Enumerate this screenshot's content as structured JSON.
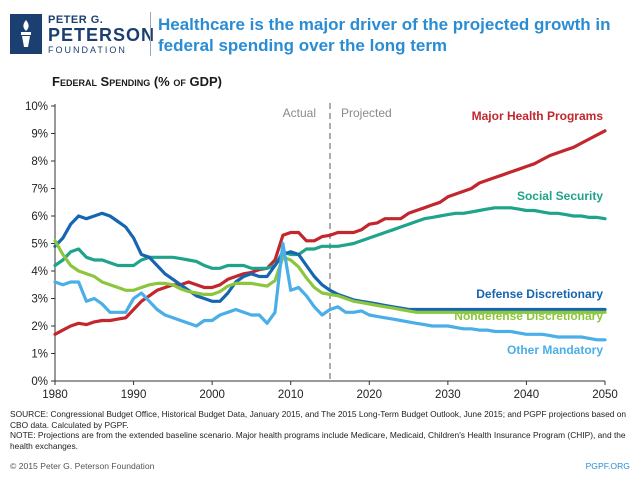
{
  "logo": {
    "line1": "PETER G.",
    "line2": "PETERSON",
    "line3": "FOUNDATION",
    "icon": "torch-logo-icon"
  },
  "title": "Healthcare is the major driver of the projected growth in federal spending over the long term",
  "subtitle": "Federal Spending (% of GDP)",
  "source_text": "SOURCE: Congressional Budget Office, Historical Budget Data, January 2015, and The 2015 Long-Term Budget Outlook, June 2015; and PGPF projections based on CBO data. Calculated by PGPF.",
  "note_text": "NOTE: Projections are from the extended baseline scenario. Major health programs include Medicare, Medicaid, Children's Health Insurance Program (CHIP), and the health exchanges.",
  "copyright": "© 2015 Peter G. Peterson Foundation",
  "site": "PGPF.ORG",
  "chart_data": {
    "type": "line",
    "x": [
      1980,
      1981,
      1982,
      1983,
      1984,
      1985,
      1986,
      1987,
      1988,
      1989,
      1990,
      1991,
      1992,
      1993,
      1994,
      1995,
      1996,
      1997,
      1998,
      1999,
      2000,
      2001,
      2002,
      2003,
      2004,
      2005,
      2006,
      2007,
      2008,
      2009,
      2010,
      2011,
      2012,
      2013,
      2014,
      2015,
      2016,
      2017,
      2018,
      2019,
      2020,
      2021,
      2022,
      2023,
      2024,
      2025,
      2026,
      2027,
      2028,
      2029,
      2030,
      2031,
      2032,
      2033,
      2034,
      2035,
      2036,
      2037,
      2038,
      2039,
      2040,
      2041,
      2042,
      2043,
      2044,
      2045,
      2046,
      2047,
      2048,
      2049,
      2050
    ],
    "xlim": [
      1980,
      2050
    ],
    "ylim": [
      0,
      10
    ],
    "xticks": [
      "1980",
      "1990",
      "2000",
      "2010",
      "2020",
      "2030",
      "2040",
      "2050"
    ],
    "yticks": [
      "0%",
      "1%",
      "2%",
      "3%",
      "4%",
      "5%",
      "6%",
      "7%",
      "8%",
      "9%",
      "10%"
    ],
    "divider_year": 2015,
    "annotations": {
      "actual": "Actual",
      "projected": "Projected"
    },
    "grid": false,
    "series": [
      {
        "name": "Major Health Programs",
        "color": "#c1272d",
        "values": [
          1.7,
          1.85,
          2.0,
          2.1,
          2.05,
          2.15,
          2.2,
          2.2,
          2.25,
          2.3,
          2.6,
          2.9,
          3.1,
          3.3,
          3.4,
          3.5,
          3.5,
          3.6,
          3.5,
          3.4,
          3.4,
          3.5,
          3.7,
          3.8,
          3.9,
          3.95,
          4.05,
          4.1,
          4.4,
          5.3,
          5.4,
          5.4,
          5.1,
          5.1,
          5.25,
          5.3,
          5.4,
          5.4,
          5.4,
          5.5,
          5.7,
          5.75,
          5.9,
          5.9,
          5.9,
          6.1,
          6.2,
          6.3,
          6.4,
          6.5,
          6.7,
          6.8,
          6.9,
          7.0,
          7.2,
          7.3,
          7.4,
          7.5,
          7.6,
          7.7,
          7.8,
          7.9,
          8.05,
          8.2,
          8.3,
          8.4,
          8.5,
          8.65,
          8.8,
          8.95,
          9.1
        ]
      },
      {
        "name": "Social Security",
        "color": "#1fa38a",
        "values": [
          4.2,
          4.4,
          4.7,
          4.8,
          4.5,
          4.4,
          4.4,
          4.3,
          4.2,
          4.2,
          4.2,
          4.4,
          4.5,
          4.5,
          4.5,
          4.5,
          4.45,
          4.4,
          4.35,
          4.2,
          4.1,
          4.1,
          4.2,
          4.2,
          4.2,
          4.1,
          4.1,
          4.1,
          4.2,
          4.7,
          4.6,
          4.6,
          4.8,
          4.8,
          4.9,
          4.9,
          4.9,
          4.95,
          5.0,
          5.1,
          5.2,
          5.3,
          5.4,
          5.5,
          5.6,
          5.7,
          5.8,
          5.9,
          5.95,
          6.0,
          6.05,
          6.1,
          6.1,
          6.15,
          6.2,
          6.25,
          6.3,
          6.3,
          6.3,
          6.25,
          6.2,
          6.2,
          6.15,
          6.1,
          6.1,
          6.05,
          6.0,
          6.0,
          5.95,
          5.95,
          5.9
        ]
      },
      {
        "name": "Defense Discretionary",
        "color": "#1565b0",
        "values": [
          4.9,
          5.2,
          5.7,
          6.0,
          5.9,
          6.0,
          6.1,
          6.0,
          5.8,
          5.6,
          5.2,
          4.6,
          4.5,
          4.2,
          3.9,
          3.7,
          3.5,
          3.3,
          3.1,
          3.0,
          2.9,
          2.9,
          3.2,
          3.6,
          3.8,
          3.9,
          3.8,
          3.8,
          4.2,
          4.6,
          4.7,
          4.6,
          4.2,
          3.8,
          3.5,
          3.3,
          3.15,
          3.05,
          2.95,
          2.9,
          2.85,
          2.8,
          2.75,
          2.7,
          2.65,
          2.6,
          2.6,
          2.6,
          2.6,
          2.6,
          2.6,
          2.6,
          2.6,
          2.6,
          2.6,
          2.6,
          2.6,
          2.6,
          2.6,
          2.6,
          2.6,
          2.6,
          2.6,
          2.6,
          2.6,
          2.6,
          2.6,
          2.6,
          2.6,
          2.6,
          2.6
        ]
      },
      {
        "name": "Nondefense Discretionary",
        "color": "#8cc63e",
        "values": [
          5.1,
          4.6,
          4.2,
          4.0,
          3.9,
          3.8,
          3.6,
          3.5,
          3.4,
          3.3,
          3.3,
          3.4,
          3.5,
          3.55,
          3.55,
          3.5,
          3.35,
          3.25,
          3.2,
          3.15,
          3.15,
          3.25,
          3.45,
          3.55,
          3.55,
          3.55,
          3.5,
          3.45,
          3.65,
          4.5,
          4.4,
          4.15,
          3.75,
          3.4,
          3.2,
          3.15,
          3.1,
          3.0,
          2.9,
          2.85,
          2.8,
          2.75,
          2.7,
          2.65,
          2.6,
          2.55,
          2.5,
          2.5,
          2.5,
          2.5,
          2.5,
          2.5,
          2.5,
          2.5,
          2.5,
          2.5,
          2.5,
          2.5,
          2.5,
          2.5,
          2.5,
          2.5,
          2.5,
          2.5,
          2.5,
          2.5,
          2.5,
          2.5,
          2.5,
          2.5,
          2.5
        ]
      },
      {
        "name": "Other Mandatory",
        "color": "#4aaee8",
        "values": [
          3.6,
          3.5,
          3.6,
          3.6,
          2.9,
          3.0,
          2.8,
          2.5,
          2.5,
          2.5,
          3.0,
          3.2,
          2.9,
          2.6,
          2.4,
          2.3,
          2.2,
          2.1,
          2.0,
          2.2,
          2.2,
          2.4,
          2.5,
          2.6,
          2.5,
          2.4,
          2.4,
          2.1,
          2.5,
          5.0,
          3.3,
          3.4,
          3.1,
          2.7,
          2.4,
          2.6,
          2.7,
          2.5,
          2.5,
          2.55,
          2.4,
          2.35,
          2.3,
          2.25,
          2.2,
          2.15,
          2.1,
          2.05,
          2.0,
          2.0,
          2.0,
          1.95,
          1.9,
          1.9,
          1.85,
          1.85,
          1.8,
          1.8,
          1.8,
          1.75,
          1.7,
          1.7,
          1.7,
          1.65,
          1.6,
          1.6,
          1.6,
          1.6,
          1.55,
          1.5,
          1.5
        ]
      }
    ]
  }
}
